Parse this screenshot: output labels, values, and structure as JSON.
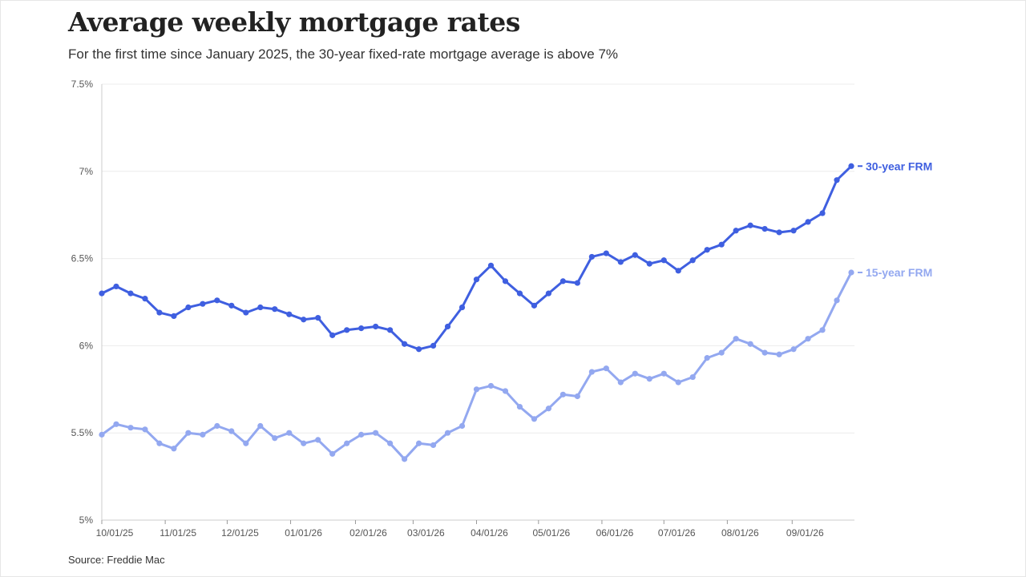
{
  "title": "Average weekly mortgage rates",
  "subtitle": "For the first time since January 2025, the 30-year fixed-rate mortgage average is above 7%",
  "source": "Source: Freddie Mac",
  "chart_data": {
    "type": "line",
    "y_ticks": [
      "5%",
      "5.5%",
      "6%",
      "6.5%",
      "7%",
      "7.5%"
    ],
    "y_tick_values": [
      5,
      5.5,
      6,
      6.5,
      7,
      7.5
    ],
    "ylim": [
      5,
      7.5
    ],
    "x_ticks": [
      "10/01/25",
      "11/01/25",
      "12/01/25",
      "01/01/26",
      "02/01/26",
      "03/01/26",
      "04/01/26",
      "05/01/26",
      "06/01/26",
      "07/01/26",
      "08/01/26",
      "09/01/26"
    ],
    "x_tick_weeks": [
      0,
      4.4,
      8.7,
      13.1,
      17.6,
      21.6,
      26.0,
      30.3,
      34.7,
      39.0,
      43.4,
      47.9
    ],
    "grid": true,
    "series": [
      {
        "name": "30-year FRM",
        "color": "#3f5fe0",
        "values": [
          6.3,
          6.34,
          6.3,
          6.27,
          6.19,
          6.17,
          6.22,
          6.24,
          6.26,
          6.23,
          6.19,
          6.22,
          6.21,
          6.18,
          6.15,
          6.16,
          6.06,
          6.09,
          6.1,
          6.11,
          6.09,
          6.01,
          5.98,
          6.0,
          6.11,
          6.22,
          6.38,
          6.46,
          6.37,
          6.3,
          6.23,
          6.3,
          6.37,
          6.36,
          6.51,
          6.53,
          6.48,
          6.52,
          6.47,
          6.49,
          6.43,
          6.49,
          6.55,
          6.58,
          6.66,
          6.69,
          6.67,
          6.65,
          6.66,
          6.71,
          6.76,
          6.95,
          7.03
        ]
      },
      {
        "name": "15-year FRM",
        "color": "#93a8f0",
        "values": [
          5.49,
          5.55,
          5.53,
          5.52,
          5.44,
          5.41,
          5.5,
          5.49,
          5.54,
          5.51,
          5.44,
          5.54,
          5.47,
          5.5,
          5.44,
          5.46,
          5.38,
          5.44,
          5.49,
          5.5,
          5.44,
          5.35,
          5.44,
          5.43,
          5.5,
          5.54,
          5.75,
          5.77,
          5.74,
          5.65,
          5.58,
          5.64,
          5.72,
          5.71,
          5.85,
          5.87,
          5.79,
          5.84,
          5.81,
          5.84,
          5.79,
          5.82,
          5.93,
          5.96,
          6.04,
          6.01,
          5.96,
          5.95,
          5.98,
          6.04,
          6.09,
          6.26,
          6.42
        ]
      }
    ]
  }
}
